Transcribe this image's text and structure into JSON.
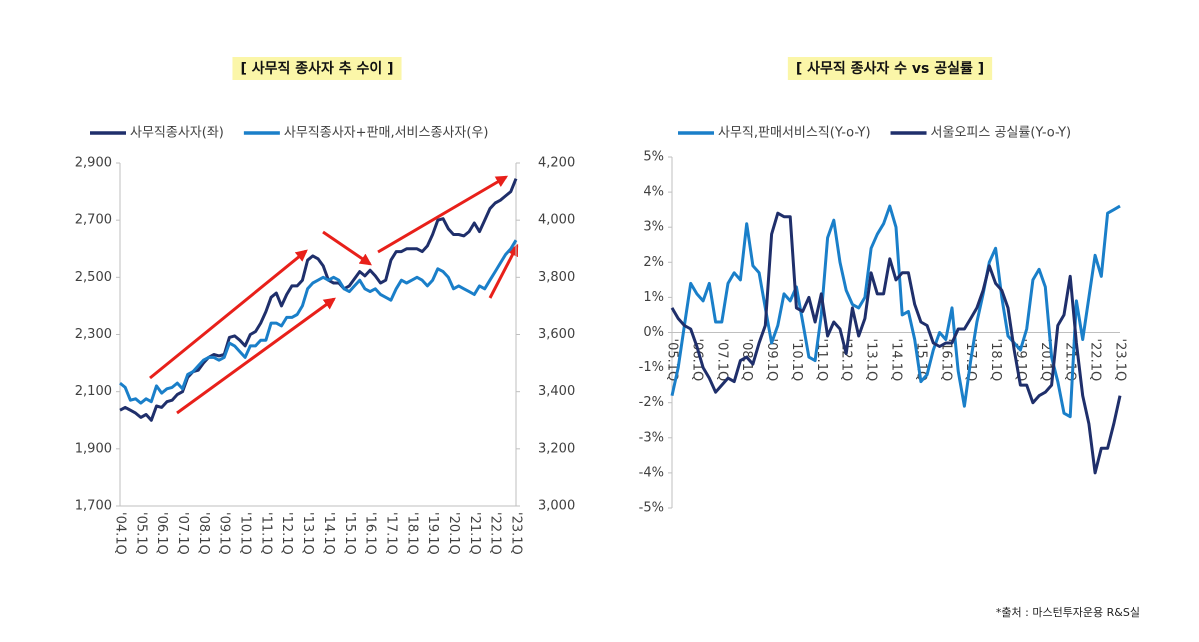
{
  "chart_data": [
    {
      "type": "line",
      "title": "[  사무직 종사자 추 수이  ]",
      "categories": [
        "'04.1Q",
        null,
        null,
        null,
        "'05.1Q",
        null,
        null,
        null,
        "'06.1Q",
        null,
        null,
        null,
        "'07.1Q",
        null,
        null,
        null,
        "'08.1Q",
        null,
        null,
        null,
        "'09.1Q",
        null,
        null,
        null,
        "'10.1Q",
        null,
        null,
        null,
        "'11.1Q",
        null,
        null,
        null,
        "'12.1Q",
        null,
        null,
        null,
        "'13.1Q",
        null,
        null,
        null,
        "'14.1Q",
        null,
        null,
        null,
        "'15.1Q",
        null,
        null,
        null,
        "'16.1Q",
        null,
        null,
        null,
        "'17.1Q",
        null,
        null,
        null,
        "'18.1Q",
        null,
        null,
        null,
        "'19.1Q",
        null,
        null,
        null,
        "'20.1Q",
        null,
        null,
        null,
        "'21.1Q",
        null,
        null,
        null,
        "'22.1Q",
        null,
        null,
        null,
        "'23.1Q"
      ],
      "series": [
        {
          "name": "사무직종사자(좌)",
          "color": "#1f2f6b",
          "values": [
            2035,
            2045,
            2035,
            2025,
            2010,
            2020,
            2000,
            2050,
            2045,
            2065,
            2070,
            2090,
            2100,
            2150,
            2170,
            2175,
            2200,
            2220,
            2230,
            2225,
            2230,
            2290,
            2295,
            2280,
            2260,
            2300,
            2310,
            2340,
            2380,
            2430,
            2445,
            2400,
            2440,
            2470,
            2470,
            2490,
            2560,
            2575,
            2565,
            2540,
            2490,
            2480,
            2480,
            2460,
            2470,
            2495,
            2520,
            2505,
            2525,
            2505,
            2480,
            2490,
            2560,
            2590,
            2590,
            2600,
            2600,
            2600,
            2590,
            2610,
            2650,
            2700,
            2705,
            2670,
            2650,
            2650,
            2645,
            2660,
            2690,
            2660,
            2700,
            2740,
            2760,
            2770,
            2785,
            2800,
            2845
          ]
        },
        {
          "name": "사무직종사자+판매,서비스종사자(우)",
          "color": "#1a7fc9",
          "axis": "y2",
          "values": [
            3430,
            3415,
            3370,
            3375,
            3360,
            3375,
            3365,
            3420,
            3395,
            3410,
            3415,
            3430,
            3410,
            3460,
            3470,
            3490,
            3510,
            3520,
            3520,
            3510,
            3520,
            3570,
            3560,
            3540,
            3520,
            3560,
            3560,
            3580,
            3580,
            3640,
            3640,
            3630,
            3660,
            3660,
            3670,
            3700,
            3760,
            3780,
            3790,
            3800,
            3790,
            3800,
            3790,
            3760,
            3750,
            3770,
            3790,
            3760,
            3750,
            3760,
            3740,
            3730,
            3720,
            3760,
            3790,
            3780,
            3790,
            3800,
            3790,
            3770,
            3790,
            3830,
            3820,
            3800,
            3760,
            3770,
            3760,
            3750,
            3740,
            3770,
            3760,
            3790,
            3820,
            3850,
            3880,
            3900,
            3930
          ]
        }
      ],
      "ylim": [
        1700,
        2900
      ],
      "yticks": [
        {
          "value": 1700,
          "label": "1,700"
        },
        {
          "value": 1900,
          "label": "1,900"
        },
        {
          "value": 2100,
          "label": "2,100"
        },
        {
          "value": 2300,
          "label": "2,300"
        },
        {
          "value": 2500,
          "label": "2,500"
        },
        {
          "value": 2700,
          "label": "2,700"
        },
        {
          "value": 2900,
          "label": "2,900"
        }
      ],
      "y2lim": [
        3000,
        4200
      ],
      "y2ticks": [
        {
          "value": 3000,
          "label": "3,000"
        },
        {
          "value": 3200,
          "label": "3,200"
        },
        {
          "value": 3400,
          "label": "3,400"
        },
        {
          "value": 3600,
          "label": "3,600"
        },
        {
          "value": 3800,
          "label": "3,800"
        },
        {
          "value": 4000,
          "label": "4,000"
        },
        {
          "value": 4200,
          "label": "4,200"
        }
      ]
    },
    {
      "type": "line",
      "title": "[  사무직 종사자 수 vs 공실률  ]",
      "categories": [
        "'05.1Q",
        null,
        null,
        null,
        "'06.1Q",
        null,
        null,
        null,
        "'07.1Q",
        null,
        null,
        null,
        "'08.1Q",
        null,
        null,
        null,
        "'09.1Q",
        null,
        null,
        null,
        "'10.1Q",
        null,
        null,
        null,
        "'11.1Q",
        null,
        null,
        null,
        "'12.1Q",
        null,
        null,
        null,
        "'13.1Q",
        null,
        null,
        null,
        "'14.1Q",
        null,
        null,
        null,
        "'15.1Q",
        null,
        null,
        null,
        "'16.1Q",
        null,
        null,
        null,
        "'17.1Q",
        null,
        null,
        null,
        "'18.1Q",
        null,
        null,
        null,
        "'19.1Q",
        null,
        null,
        null,
        "'20.1Q",
        null,
        null,
        null,
        "'21.1Q",
        null,
        null,
        null,
        "'22.1Q",
        null,
        null,
        null,
        "'23.1Q"
      ],
      "series": [
        {
          "name": "사무직,판매서비스직(Y-o-Y)",
          "color": "#1a7fc9",
          "values": [
            -1.8,
            -1.0,
            0.2,
            1.4,
            1.1,
            0.9,
            1.4,
            0.3,
            0.3,
            1.4,
            1.7,
            1.5,
            3.1,
            1.9,
            1.7,
            0.7,
            -0.3,
            0.2,
            1.1,
            0.9,
            1.3,
            0.3,
            -0.7,
            -0.8,
            0.5,
            2.7,
            3.2,
            2.0,
            1.2,
            0.8,
            0.7,
            1.0,
            2.4,
            2.8,
            3.1,
            3.6,
            3.0,
            0.5,
            0.6,
            -0.2,
            -1.4,
            -1.2,
            -0.5,
            0,
            -0.2,
            0.7,
            -1.1,
            -2.1,
            -0.8,
            0.3,
            1.1,
            2.0,
            2.4,
            1.0,
            -0.1,
            -0.3,
            -0.5,
            0.1,
            1.5,
            1.8,
            1.3,
            -0.7,
            -1.4,
            -2.3,
            -2.4,
            0.9,
            -0.2,
            1.0,
            2.2,
            1.6,
            3.4,
            3.5,
            3.6
          ]
        },
        {
          "name": "서울오피스 공실률(Y-o-Y)",
          "color": "#1f2f6b",
          "values": [
            0.7,
            0.4,
            0.2,
            0.1,
            -0.4,
            -1.0,
            -1.3,
            -1.7,
            -1.5,
            -1.3,
            -1.4,
            -0.8,
            -0.7,
            -0.9,
            -0.3,
            0.2,
            2.8,
            3.4,
            3.3,
            3.3,
            0.7,
            0.6,
            1.0,
            0.3,
            1.1,
            -0.1,
            0.3,
            0.1,
            -0.6,
            0.7,
            -0.1,
            0.4,
            1.7,
            1.1,
            1.1,
            2.1,
            1.5,
            1.7,
            1.7,
            0.8,
            0.3,
            0.2,
            -0.3,
            -0.4,
            -0.3,
            -0.3,
            0.1,
            0.1,
            0.4,
            0.7,
            1.2,
            1.9,
            1.4,
            1.2,
            0.7,
            -0.5,
            -1.5,
            -1.5,
            -2.0,
            -1.8,
            -1.7,
            -1.5,
            0.2,
            0.5,
            1.6,
            -0.3,
            -1.8,
            -2.6,
            -4.0,
            -3.3,
            -3.3,
            -2.6,
            -1.8
          ]
        }
      ],
      "ylim": [
        -5,
        5
      ],
      "yticks": [
        {
          "value": -5,
          "label": "-5%"
        },
        {
          "value": -4,
          "label": "-4%"
        },
        {
          "value": -3,
          "label": "-3%"
        },
        {
          "value": -2,
          "label": "-2%"
        },
        {
          "value": -1,
          "label": "-1%"
        },
        {
          "value": 0,
          "label": "0%"
        },
        {
          "value": 1,
          "label": "1%"
        },
        {
          "value": 2,
          "label": "2%"
        },
        {
          "value": 3,
          "label": "3%"
        },
        {
          "value": 4,
          "label": "4%"
        },
        {
          "value": 5,
          "label": "5%"
        }
      ]
    }
  ],
  "source": "*출처 : 마스턴투자운용 R&S실"
}
